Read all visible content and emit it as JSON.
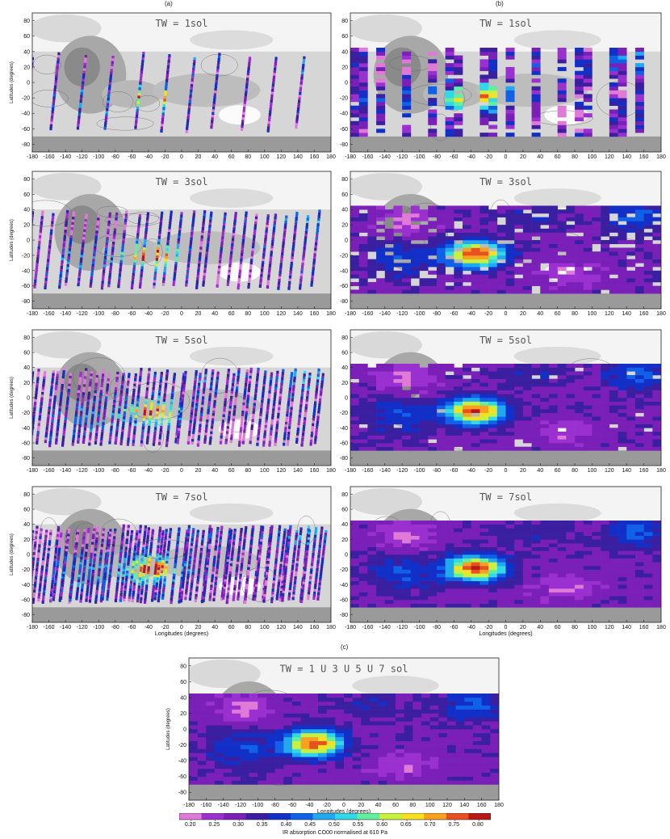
{
  "panel_labels": {
    "a": "(a)",
    "b": "(b)",
    "c": "(c)"
  },
  "chart_data": [
    {
      "id": "a1",
      "type": "heatmap",
      "title": "TW = 1sol",
      "ylabel": "Latitudes (degrees)",
      "xlabel": "",
      "xlim": [
        -180,
        180
      ],
      "ylim": [
        -90,
        90
      ],
      "style": "tracks",
      "n": 11
    },
    {
      "id": "b1",
      "type": "heatmap",
      "title": "TW = 1sol",
      "ylabel": "",
      "xlabel": "",
      "xlim": [
        -180,
        180
      ],
      "ylim": [
        -90,
        90
      ],
      "style": "binned-sparse",
      "n": 11
    },
    {
      "id": "a3",
      "type": "heatmap",
      "title": "TW = 3sol",
      "ylabel": "Latitudes (degrees)",
      "xlabel": "",
      "xlim": [
        -180,
        180
      ],
      "ylim": [
        -90,
        90
      ],
      "style": "tracks",
      "n": 28
    },
    {
      "id": "b3",
      "type": "heatmap",
      "title": "TW = 3sol",
      "ylabel": "",
      "xlabel": "",
      "xlim": [
        -180,
        180
      ],
      "ylim": [
        -90,
        90
      ],
      "style": "binned",
      "coverage": 0.85
    },
    {
      "id": "a5",
      "type": "heatmap",
      "title": "TW = 5sol",
      "ylabel": "Latitudes (degrees)",
      "xlabel": "",
      "xlim": [
        -180,
        180
      ],
      "ylim": [
        -90,
        90
      ],
      "style": "tracks",
      "n": 46
    },
    {
      "id": "b5",
      "type": "heatmap",
      "title": "TW = 5sol",
      "ylabel": "",
      "xlabel": "",
      "xlim": [
        -180,
        180
      ],
      "ylim": [
        -90,
        90
      ],
      "style": "binned",
      "coverage": 0.96
    },
    {
      "id": "a7",
      "type": "heatmap",
      "title": "TW = 7sol",
      "ylabel": "Latitudes (degrees)",
      "xlabel": "Longitudes (degrees)",
      "xlim": [
        -180,
        180
      ],
      "ylim": [
        -90,
        90
      ],
      "style": "tracks",
      "n": 64
    },
    {
      "id": "b7",
      "type": "heatmap",
      "title": "TW = 7sol",
      "ylabel": "",
      "xlabel": "Longitudes (degrees)",
      "xlim": [
        -180,
        180
      ],
      "ylim": [
        -90,
        90
      ],
      "style": "binned",
      "coverage": 1.0
    },
    {
      "id": "c",
      "type": "heatmap",
      "title": "TW = 1 U 3 U 5 U 7 sol",
      "ylabel": "Latitudes (degrees)",
      "xlabel": "Longitudes (degrees)",
      "xlim": [
        -180,
        180
      ],
      "ylim": [
        -90,
        90
      ],
      "style": "binned",
      "coverage": 1.0
    }
  ],
  "axes": {
    "x_ticks": [
      "-180",
      "-160",
      "-140",
      "-120",
      "-100",
      "-80",
      "-60",
      "-40",
      "-20",
      "0",
      "20",
      "40",
      "60",
      "80",
      "100",
      "120",
      "140",
      "160",
      "180"
    ],
    "y_ticks": [
      "80",
      "60",
      "40",
      "20",
      "0",
      "-20",
      "-40",
      "-60",
      "-80"
    ]
  },
  "colorbar": {
    "title": "IR absorption CO00 normalised at 610 Pa",
    "ticks": [
      "0.20",
      "0.25",
      "0.30",
      "0.35",
      "0.40",
      "0.45",
      "0.50",
      "0.55",
      "0.60",
      "0.65",
      "0.70",
      "0.75",
      "0.80"
    ],
    "range": [
      0.175,
      0.825
    ],
    "colors": [
      "#e07ad8",
      "#9b30d0",
      "#7a1fb8",
      "#3a1fa0",
      "#1230c8",
      "#1060e8",
      "#20a8f0",
      "#30d8e8",
      "#60f0a0",
      "#c8f040",
      "#f8e020",
      "#f8a020",
      "#e85020",
      "#b81818"
    ]
  }
}
